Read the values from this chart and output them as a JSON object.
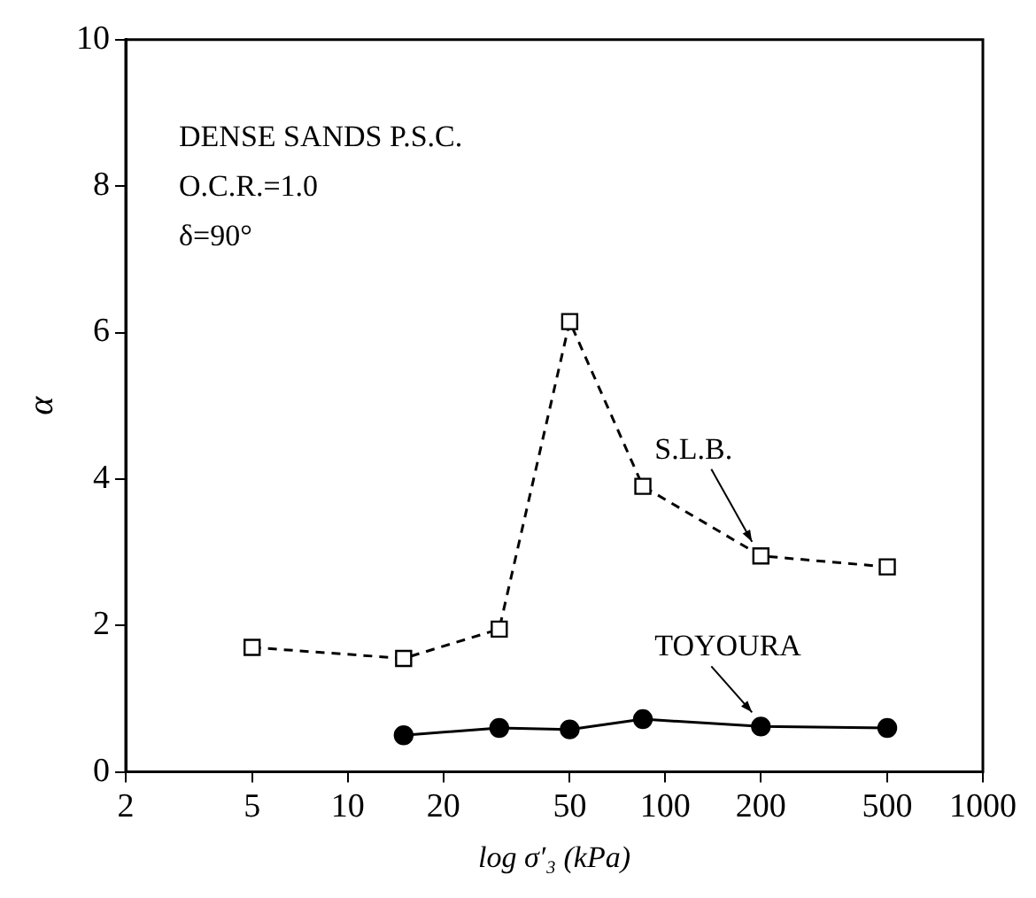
{
  "chart_data": {
    "type": "line",
    "xlabel": "log σ′₃ (kPa)",
    "ylabel": "α",
    "log": "x",
    "grid": false,
    "legend": false,
    "xlim": [
      2,
      1000
    ],
    "xticks": [
      2,
      5,
      10,
      20,
      50,
      100,
      200,
      500,
      1000
    ],
    "ylim": [
      0,
      10
    ],
    "yticks": [
      0,
      2,
      4,
      6,
      8,
      10
    ],
    "annotations": [
      "DENSE SANDS P.S.C.",
      "O.C.R.=1.0",
      "δ=90°"
    ],
    "series": [
      {
        "name": "S.L.B.",
        "color": "#000000",
        "marker": "square",
        "line_style": "dashed",
        "x": [
          5,
          15,
          30,
          50,
          85,
          200,
          500
        ],
        "values": [
          1.7,
          1.55,
          1.95,
          6.15,
          3.9,
          2.95,
          2.8
        ]
      },
      {
        "name": "TOYOURA",
        "color": "#000000",
        "marker": "circle",
        "line_style": "solid",
        "x": [
          15,
          30,
          50,
          85,
          200,
          500
        ],
        "values": [
          0.5,
          0.6,
          0.58,
          0.72,
          0.62,
          0.6
        ]
      }
    ]
  }
}
